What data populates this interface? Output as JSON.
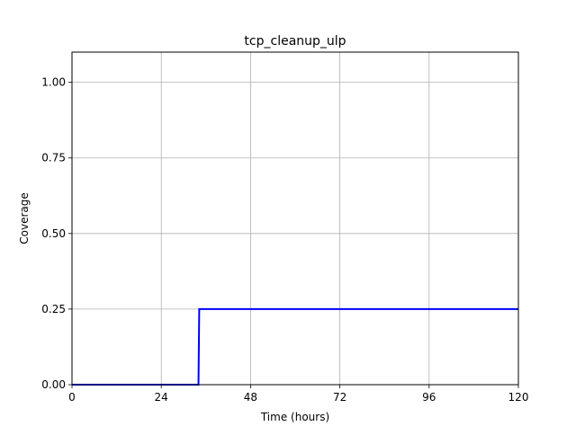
{
  "chart_data": {
    "type": "line",
    "title": "tcp_cleanup_ulp",
    "xlabel": "Time (hours)",
    "ylabel": "Coverage",
    "xlim": [
      0,
      120
    ],
    "ylim": [
      0,
      1.1
    ],
    "xticks": [
      0,
      24,
      48,
      72,
      96,
      120
    ],
    "yticks": [
      0.0,
      0.25,
      0.5,
      0.75,
      1.0
    ],
    "xtick_labels": [
      "0",
      "24",
      "48",
      "72",
      "96",
      "120"
    ],
    "ytick_labels": [
      "0.00",
      "0.25",
      "0.50",
      "0.75",
      "1.00"
    ],
    "grid": true,
    "legend": "none",
    "series": [
      {
        "color": "#0000ff",
        "x": [
          0,
          34,
          34.2,
          120
        ],
        "y": [
          0,
          0,
          0.25,
          0.25
        ]
      }
    ]
  }
}
